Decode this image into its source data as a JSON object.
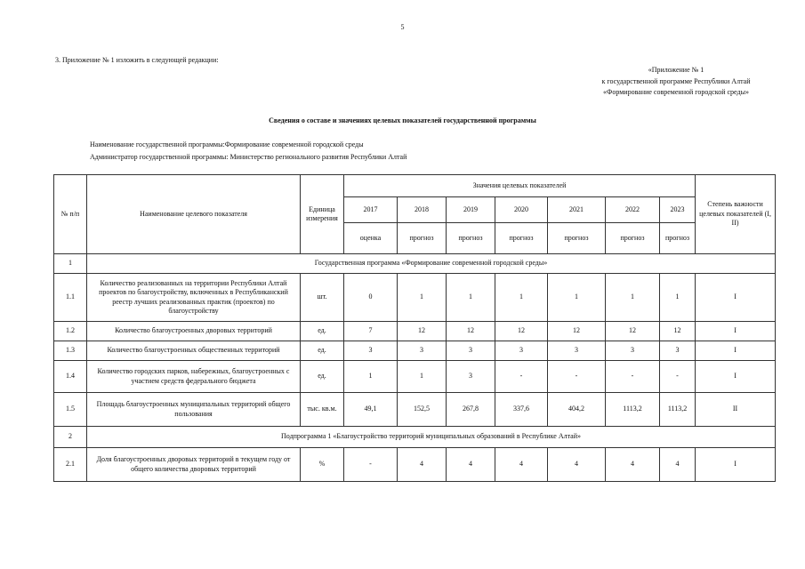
{
  "page_number": "5",
  "intro": "3. Приложение № 1 изложить в следующей редакции:",
  "appendix": [
    "«Приложение № 1",
    "к государственной программе Республики Алтай",
    "«Формирование современной городской среды»"
  ],
  "title": "Сведения о составе и значениях целевых показателей государственной программы",
  "program_name": "Наименование государственной программы:Формирование современной городской среды",
  "administrator": "Администратор государственной программы: Министерство регионального развития Республики Алтай",
  "table": {
    "headers": {
      "num": "№ п/п",
      "name": "Наименование целевого показателя",
      "unit": "Единица измерения",
      "values": "Значения целевых показателей",
      "importance": "Степень важности целевых показателей (I, II)",
      "years": [
        "2017",
        "2018",
        "2019",
        "2020",
        "2021",
        "2022",
        "2023"
      ],
      "kinds": [
        "оценка",
        "прогноз",
        "прогноз",
        "прогноз",
        "прогноз",
        "прогноз",
        "прогноз"
      ]
    },
    "rows": [
      {
        "type": "section",
        "num": "1",
        "title": "Государственная программа «Формирование современной городской среды»"
      },
      {
        "type": "row",
        "num": "1.1",
        "name": "Количество реализованных на территории Республики Алтай проектов по благоустройству, включенных в Республиканский реестр лучших реализованных практик (проектов) по благоустройству",
        "unit": "шт.",
        "values": [
          "0",
          "1",
          "1",
          "1",
          "1",
          "1",
          "1"
        ],
        "importance": "I"
      },
      {
        "type": "row",
        "num": "1.2",
        "name": "Количество благоустроенных дворовых территорий",
        "unit": "ед.",
        "values": [
          "7",
          "12",
          "12",
          "12",
          "12",
          "12",
          "12"
        ],
        "importance": "I"
      },
      {
        "type": "row",
        "num": "1.3",
        "name": "Количество благоустроенных общественных территорий",
        "unit": "ед.",
        "values": [
          "3",
          "3",
          "3",
          "3",
          "3",
          "3",
          "3"
        ],
        "importance": "I"
      },
      {
        "type": "row",
        "num": "1.4",
        "name": "Количество городских парков, набережных, благоустроенных с участием средств федерального бюджета",
        "unit": "ед.",
        "values": [
          "1",
          "1",
          "3",
          "-",
          "-",
          "-",
          "-"
        ],
        "importance": "I"
      },
      {
        "type": "row",
        "num": "1.5",
        "name": "Площадь благоустроенных муниципальных территорий общего пользования",
        "unit": "тыс. кв.м.",
        "values": [
          "49,1",
          "152,5",
          "267,8",
          "337,6",
          "404,2",
          "1113,2",
          "1113,2"
        ],
        "importance": "II"
      },
      {
        "type": "section",
        "num": "2",
        "title": "Подпрограмма 1 «Благоустройство территорий муниципальных образований в Республике Алтай»"
      },
      {
        "type": "row",
        "num": "2.1",
        "name": "Доля благоустроенных дворовых территорий в текущем году от общего количества дворовых территорий",
        "unit": "%",
        "values": [
          "-",
          "4",
          "4",
          "4",
          "4",
          "4",
          "4"
        ],
        "importance": "I"
      }
    ]
  }
}
